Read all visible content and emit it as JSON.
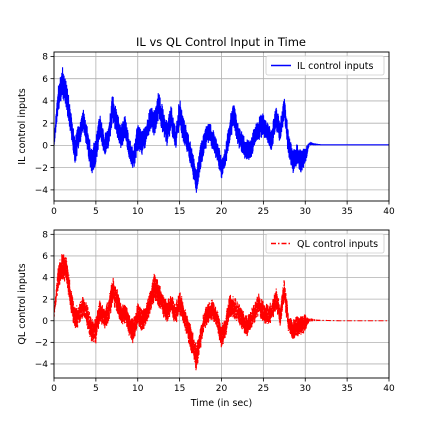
{
  "title": "IL vs QL Control Input in Time",
  "chart_data": [
    {
      "type": "line",
      "title": "IL vs QL Control Input in Time",
      "xlabel": "",
      "ylabel": "IL control inputs",
      "xlim": [
        0,
        40
      ],
      "ylim": [
        -5,
        8.4
      ],
      "xticks": [
        "0",
        "5",
        "10",
        "15",
        "20",
        "25",
        "30",
        "35",
        "40"
      ],
      "yticks": [
        "-4",
        "-2",
        "0",
        "2",
        "4",
        "6",
        "8"
      ],
      "grid": true,
      "legend": "top-right",
      "series": [
        {
          "name": "IL control inputs",
          "color": "#0000ff",
          "style": "solid",
          "x": [
            0,
            0.5,
            1,
            1.5,
            2,
            2.5,
            3,
            3.5,
            4,
            4.5,
            5,
            5.5,
            6,
            6.5,
            7,
            7.5,
            8,
            8.5,
            9,
            9.5,
            10,
            10.5,
            11,
            11.5,
            12,
            12.5,
            13,
            13.5,
            14,
            14.5,
            15,
            15.5,
            16,
            16.5,
            17,
            17.5,
            18,
            18.5,
            19,
            19.5,
            20,
            20.5,
            21,
            21.5,
            22,
            22.5,
            23,
            23.5,
            24,
            24.5,
            25,
            25.5,
            26,
            26.5,
            27,
            27.5,
            28,
            28.5,
            29,
            29.5,
            30,
            30.5,
            31,
            32,
            33,
            34,
            35,
            36,
            37,
            38,
            39,
            40
          ],
          "values": [
            0.2,
            4.2,
            5.8,
            4.5,
            2.0,
            -0.5,
            1.0,
            2.2,
            0.5,
            -1.5,
            -0.5,
            1.8,
            0.0,
            0.5,
            3.5,
            2.0,
            0.8,
            1.6,
            -0.5,
            -1.2,
            0.8,
            0.2,
            1.0,
            2.5,
            2.0,
            3.6,
            2.2,
            1.0,
            2.5,
            0.5,
            3.0,
            1.2,
            0.2,
            -1.5,
            -3.2,
            -1.0,
            0.5,
            1.2,
            0.5,
            -0.5,
            -2.0,
            -1.0,
            1.5,
            2.8,
            0.8,
            0.2,
            -0.5,
            -0.2,
            0.8,
            1.5,
            2.0,
            1.0,
            0.5,
            2.5,
            1.2,
            3.5,
            0.0,
            -1.5,
            -0.8,
            -1.5,
            -1.0,
            0.2,
            0.1,
            0.05,
            0.05,
            0.05,
            0.05,
            0.05,
            0.05,
            0.05,
            0.05,
            0.05
          ],
          "amplitude": [
            0.3,
            1.2,
            1.4,
            1.3,
            1.2,
            1.2,
            1.1,
            1.1,
            1.1,
            1.2,
            1.3,
            1.1,
            1.0,
            1.1,
            1.3,
            1.2,
            1.1,
            1.1,
            1.1,
            1.1,
            1.2,
            1.1,
            1.0,
            1.1,
            1.2,
            1.3,
            1.2,
            1.1,
            1.2,
            1.1,
            1.3,
            1.2,
            1.1,
            1.1,
            1.2,
            1.1,
            1.0,
            1.0,
            1.0,
            1.0,
            1.1,
            1.0,
            1.1,
            1.2,
            1.0,
            1.0,
            1.0,
            1.0,
            1.0,
            1.1,
            1.1,
            1.0,
            1.0,
            1.1,
            1.0,
            1.2,
            1.1,
            1.1,
            1.0,
            1.0,
            0.9,
            0.05,
            0.02,
            0,
            0,
            0,
            0,
            0,
            0,
            0,
            0,
            0
          ]
        }
      ]
    },
    {
      "type": "line",
      "title": "",
      "xlabel": "Time (in sec)",
      "ylabel": "QL control inputs",
      "xlim": [
        0,
        40
      ],
      "ylim": [
        -5.3,
        8.4
      ],
      "xticks": [
        "0",
        "5",
        "10",
        "15",
        "20",
        "25",
        "30",
        "35",
        "40"
      ],
      "yticks": [
        "-4",
        "-2",
        "0",
        "2",
        "4",
        "6",
        "8"
      ],
      "grid": true,
      "legend": "top-right",
      "series": [
        {
          "name": "QL control inputs",
          "color": "#ff0000",
          "style": "dashdot",
          "x": [
            0,
            0.5,
            1,
            1.5,
            2,
            2.5,
            3,
            3.5,
            4,
            4.5,
            5,
            5.5,
            6,
            6.5,
            7,
            7.5,
            8,
            8.5,
            9,
            9.5,
            10,
            10.5,
            11,
            11.5,
            12,
            12.5,
            13,
            13.5,
            14,
            14.5,
            15,
            15.5,
            16,
            16.5,
            17,
            17.5,
            18,
            18.5,
            19,
            19.5,
            20,
            20.5,
            21,
            21.5,
            22,
            22.5,
            23,
            23.5,
            24,
            24.5,
            25,
            25.5,
            26,
            26.5,
            27,
            27.5,
            28,
            28.5,
            29,
            29.5,
            30,
            30.5,
            31,
            32,
            33,
            34,
            35,
            36,
            37,
            38,
            39,
            40
          ],
          "values": [
            0.5,
            4.0,
            5.2,
            4.6,
            2.0,
            0.2,
            0.5,
            1.5,
            0.3,
            -1.0,
            -0.8,
            1.0,
            0.2,
            0.8,
            2.8,
            2.0,
            0.5,
            0.8,
            -0.5,
            -1.0,
            0.6,
            0.0,
            0.5,
            1.8,
            3.2,
            2.5,
            1.5,
            0.8,
            1.6,
            0.5,
            1.8,
            0.6,
            -0.8,
            -2.0,
            -3.5,
            -1.5,
            0.2,
            0.8,
            1.0,
            0.0,
            -1.5,
            -0.5,
            1.4,
            1.2,
            0.8,
            0.0,
            -0.5,
            0.0,
            0.8,
            1.5,
            0.8,
            0.5,
            0.8,
            2.0,
            0.5,
            2.8,
            -0.2,
            -0.8,
            -0.5,
            -0.5,
            -0.2,
            0.1,
            0.05,
            0.03,
            0.02,
            0.0,
            0.0,
            0.0,
            0.0,
            0.0,
            0.0,
            0.0
          ],
          "amplitude": [
            0.3,
            1.1,
            1.3,
            1.3,
            1.2,
            1.1,
            1.1,
            1.0,
            1.1,
            1.2,
            1.3,
            1.1,
            1.0,
            1.1,
            1.3,
            1.2,
            1.0,
            1.0,
            1.1,
            1.2,
            1.1,
            1.0,
            1.0,
            1.1,
            1.3,
            1.2,
            1.1,
            1.0,
            1.1,
            1.0,
            1.2,
            1.1,
            1.1,
            1.2,
            1.3,
            1.1,
            1.0,
            1.0,
            1.0,
            1.0,
            1.1,
            1.0,
            1.1,
            1.1,
            1.0,
            1.0,
            1.0,
            1.0,
            1.0,
            1.1,
            1.0,
            1.0,
            1.0,
            1.1,
            1.0,
            1.2,
            1.0,
            1.0,
            1.0,
            1.0,
            0.9,
            0.05,
            0.02,
            0,
            0,
            0,
            0,
            0,
            0,
            0,
            0,
            0
          ]
        }
      ]
    }
  ]
}
